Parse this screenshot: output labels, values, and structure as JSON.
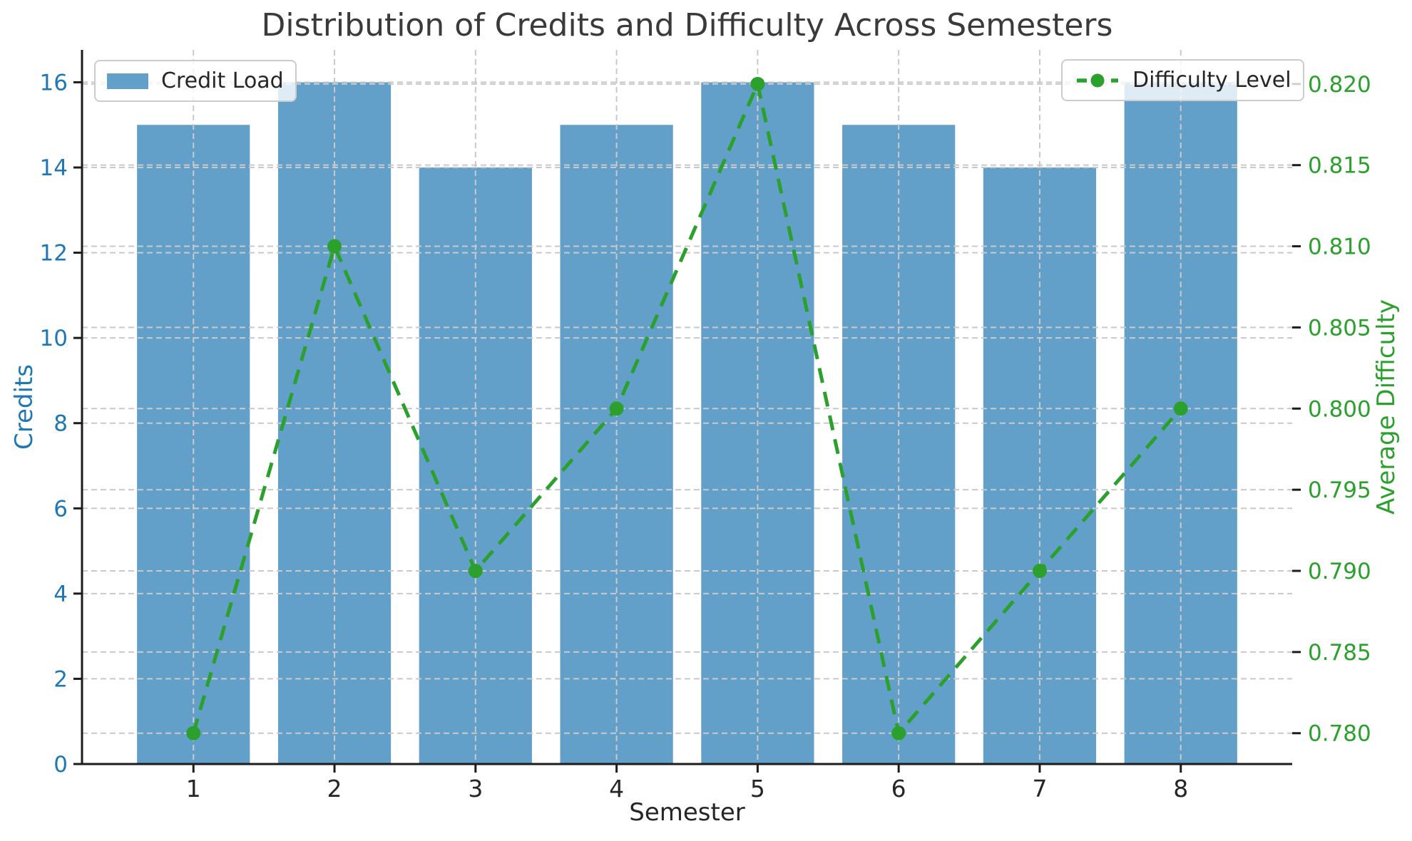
{
  "chart_data": {
    "type": "bar",
    "title": "Distribution of Credits and Difficulty Across Semesters",
    "xlabel": "Semester",
    "categories": [
      "1",
      "2",
      "3",
      "4",
      "5",
      "6",
      "7",
      "8"
    ],
    "series": [
      {
        "name": "Credit Load",
        "kind": "bar",
        "axis": "left",
        "values": [
          15,
          16,
          14,
          15,
          16,
          15,
          14,
          16
        ],
        "color": "#62a0ca",
        "bar_width": 0.8
      },
      {
        "name": "Difficulty Level",
        "kind": "line",
        "axis": "right",
        "values": [
          0.78,
          0.81,
          0.79,
          0.8,
          0.82,
          0.78,
          0.79,
          0.8
        ],
        "color": "#2ca02c",
        "dash": [
          21,
          13
        ],
        "line_width": 5,
        "marker": "circle",
        "marker_radius": 10
      }
    ],
    "left_axis": {
      "label": "Credits",
      "color": "#1f77b4",
      "ticks": [
        0,
        2,
        4,
        6,
        8,
        10,
        12,
        14,
        16
      ],
      "range": [
        0,
        16.76
      ]
    },
    "right_axis": {
      "label": "Average Difficulty",
      "color": "#2ca02c",
      "tick_labels": [
        "0.780",
        "0.785",
        "0.790",
        "0.795",
        "0.800",
        "0.805",
        "0.810",
        "0.815",
        "0.820"
      ],
      "tick_values": [
        0.78,
        0.785,
        0.79,
        0.795,
        0.8,
        0.805,
        0.81,
        0.815,
        0.82
      ],
      "range": [
        0.7781,
        0.8221
      ]
    },
    "x_range": [
      0.21,
      8.79
    ],
    "grid": {
      "color": "#c9c9c9",
      "dash": [
        8,
        5
      ],
      "width": 2
    },
    "spine_color": "#1c1c1c",
    "tick_color": "#1c1c1c",
    "x_tick_color": "#262626",
    "title_color": "#3a3a3a",
    "legend_border_color": "#cccccc"
  }
}
